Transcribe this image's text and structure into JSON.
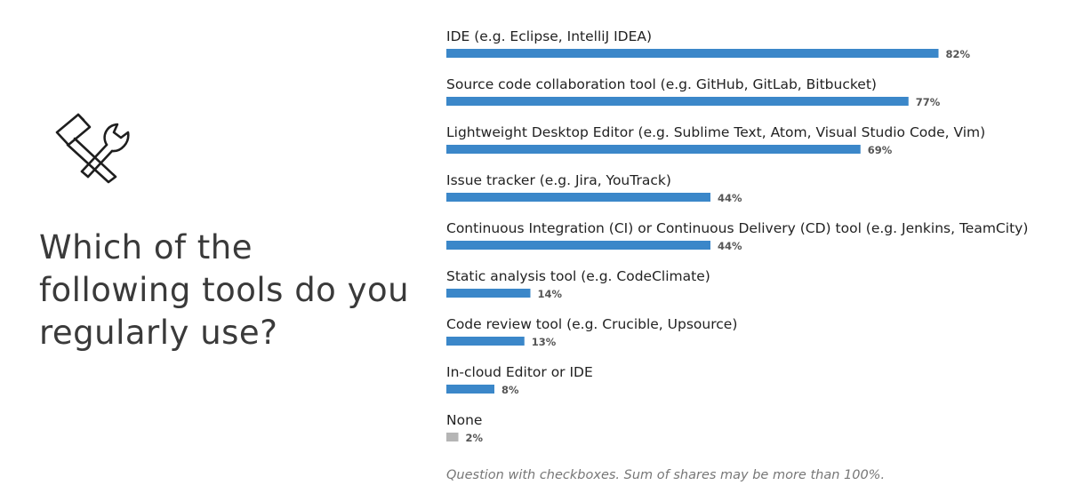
{
  "question": "Which of the following tools do you regularly use?",
  "footnote": "Question with checkboxes. Sum of shares may be more than 100%.",
  "icon": "hammer-and-wrench-icon",
  "colors": {
    "bar": "#3b87c9",
    "bar_none": "#b5b5b5",
    "label": "#222222",
    "percent": "#555555"
  },
  "chart_data": {
    "type": "bar",
    "orientation": "horizontal",
    "categories": [
      "IDE (e.g. Eclipse, IntelliJ IDEA)",
      "Source code collaboration tool (e.g. GitHub, GitLab, Bitbucket)",
      "Lightweight Desktop Editor (e.g. Sublime Text, Atom, Visual Studio Code, Vim)",
      "Issue tracker (e.g. Jira, YouTrack)",
      "Continuous Integration (CI) or Continuous Delivery (CD) tool (e.g. Jenkins, TeamCity)",
      "Static analysis tool (e.g. CodeClimate)",
      "Code review tool (e.g. Crucible, Upsource)",
      "In-cloud Editor or IDE",
      "None"
    ],
    "values": [
      82,
      77,
      69,
      44,
      44,
      14,
      13,
      8,
      2
    ],
    "value_labels": [
      "82%",
      "77%",
      "69%",
      "44%",
      "44%",
      "14%",
      "13%",
      "8%",
      "2%"
    ],
    "title": "Which of the following tools do you regularly use?",
    "xlabel": "",
    "ylabel": "",
    "xlim": [
      0,
      100
    ],
    "grid": false,
    "legend": "none"
  }
}
